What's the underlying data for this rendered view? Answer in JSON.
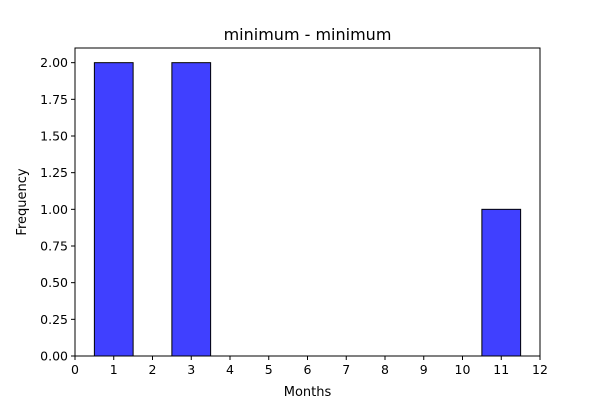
{
  "chart_data": {
    "type": "bar",
    "title": "minimum - minimum",
    "xlabel": "Months",
    "ylabel": "Frequency",
    "xlim": [
      0,
      12
    ],
    "ylim": [
      0,
      2.1
    ],
    "bars": [
      {
        "x_start": 0.5,
        "x_end": 1.5,
        "value": 2
      },
      {
        "x_start": 2.5,
        "x_end": 3.5,
        "value": 2
      },
      {
        "x_start": 10.5,
        "x_end": 11.5,
        "value": 1
      }
    ],
    "x_ticks": [
      "0",
      "1",
      "2",
      "3",
      "4",
      "5",
      "6",
      "7",
      "8",
      "9",
      "10",
      "11",
      "12"
    ],
    "y_ticks": [
      "0.00",
      "0.25",
      "0.50",
      "0.75",
      "1.00",
      "1.25",
      "1.50",
      "1.75",
      "2.00"
    ],
    "bar_color": "#4040ff",
    "edge_color": "#000000",
    "grid": false,
    "legend": "none"
  }
}
